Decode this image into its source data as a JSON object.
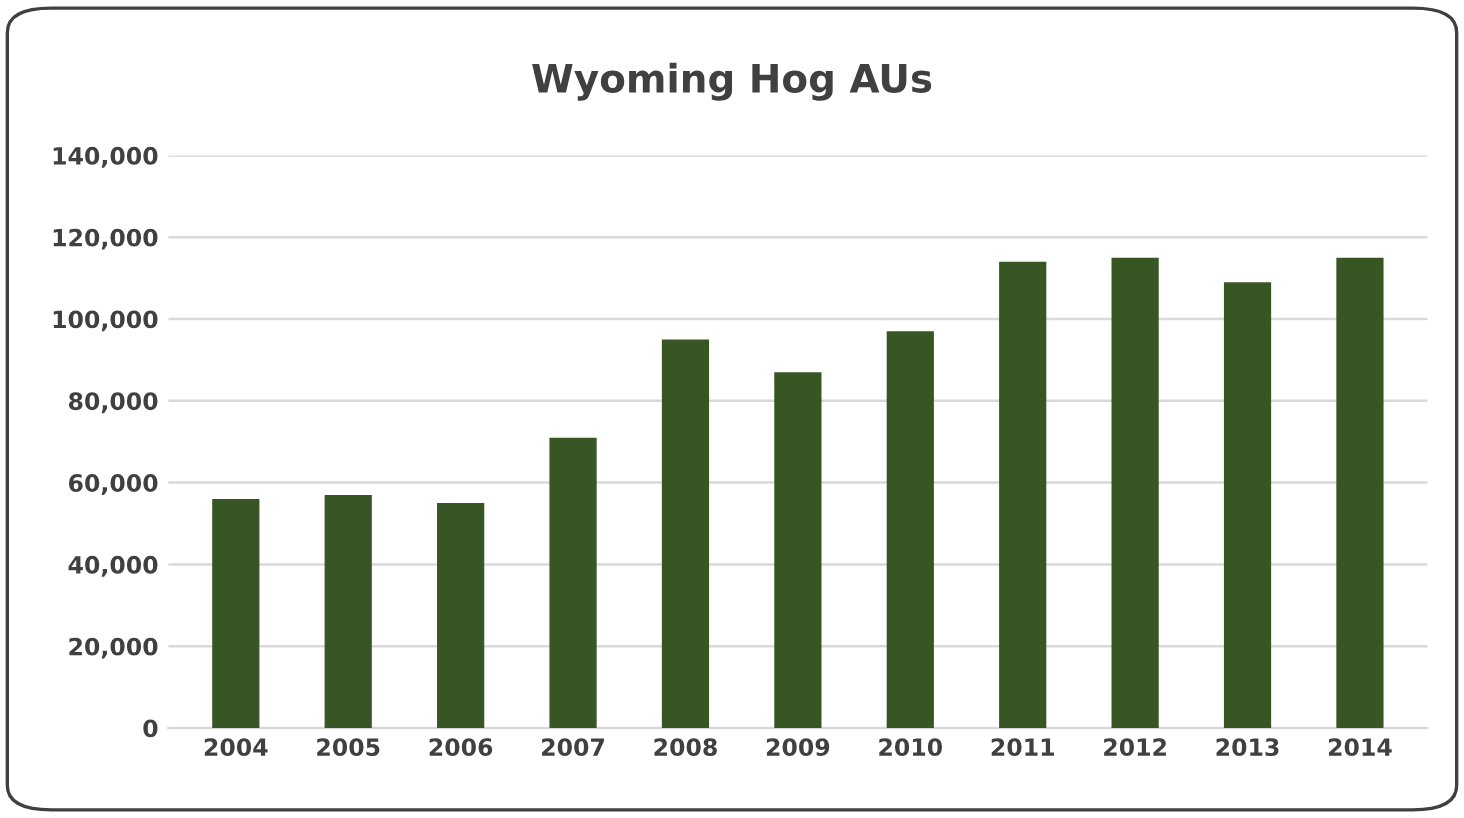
{
  "chart_data": {
    "type": "bar",
    "title": "Wyoming Hog AUs",
    "categories": [
      "2004",
      "2005",
      "2006",
      "2007",
      "2008",
      "2009",
      "2010",
      "2011",
      "2012",
      "2013",
      "2014"
    ],
    "values": [
      56000,
      57000,
      55000,
      71000,
      95000,
      87000,
      97000,
      114000,
      115000,
      109000,
      115000
    ],
    "color": "#375623",
    "ylim": [
      0,
      140000
    ],
    "yticks": [
      0,
      {
        "value": 20000,
        "label": "20,000"
      },
      {
        "value": 40000,
        "label": "40,000"
      },
      {
        "value": 60000,
        "label": "60,000"
      },
      {
        "value": 80000,
        "label": "80,000"
      },
      {
        "value": 100000,
        "label": "100,000"
      },
      {
        "value": 120000,
        "label": "120,000"
      },
      {
        "value": 140000,
        "label": "140,000"
      }
    ],
    "grid": "y",
    "legend": false
  }
}
